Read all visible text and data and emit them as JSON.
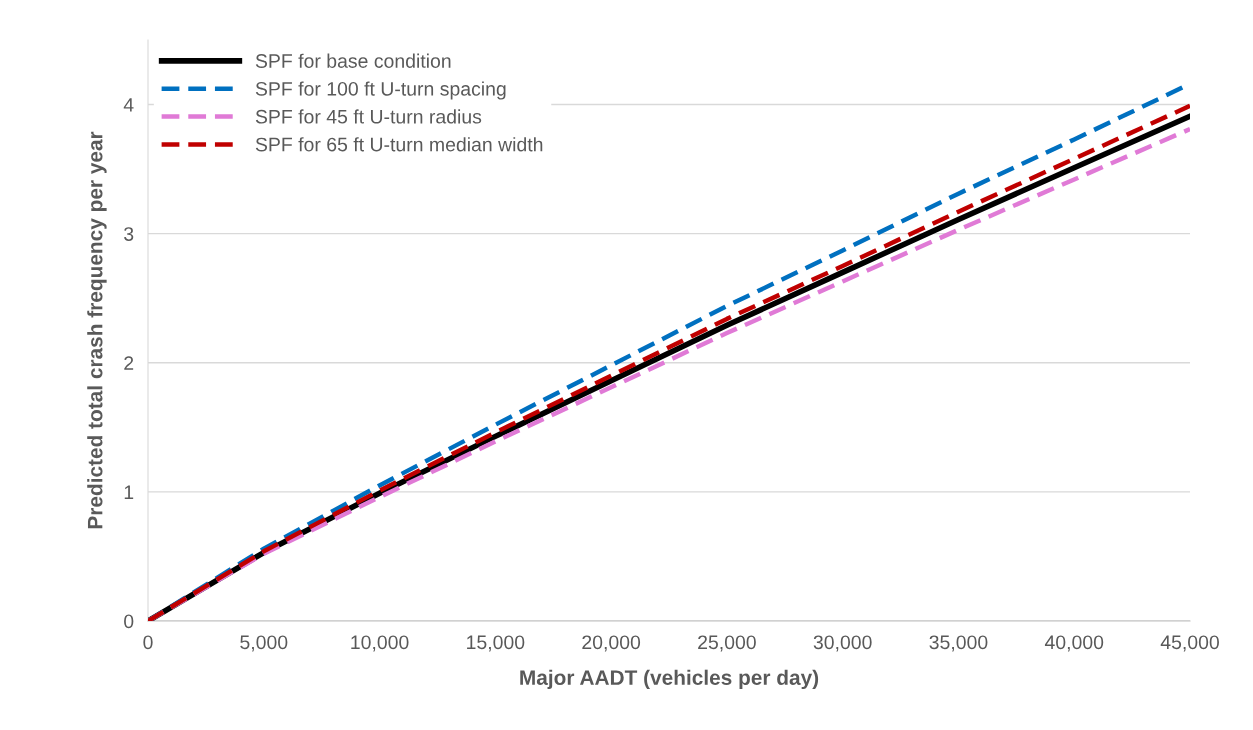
{
  "chart_data": {
    "type": "line",
    "xlabel": "Major AADT (vehicles per day)",
    "ylabel": "Predicted total crash frequency per year",
    "x": [
      0,
      5000,
      10000,
      15000,
      20000,
      25000,
      30000,
      35000,
      40000,
      45000
    ],
    "series": [
      {
        "name": "SPF for base condition",
        "color": "#000000",
        "line_style": "solid",
        "values": [
          0,
          0.53,
          0.99,
          1.43,
          1.86,
          2.29,
          2.7,
          3.11,
          3.51,
          3.91
        ]
      },
      {
        "name": "SPF for 100 ft U-turn spacing",
        "color": "#0070c0",
        "line_style": "dashed",
        "values": [
          0,
          0.56,
          1.05,
          1.52,
          1.98,
          2.44,
          2.87,
          3.31,
          3.73,
          4.16
        ]
      },
      {
        "name": "SPF for 45 ft U-turn radius",
        "color": "#e07ad6",
        "line_style": "dashed",
        "values": [
          0,
          0.52,
          0.96,
          1.39,
          1.81,
          2.23,
          2.63,
          3.03,
          3.42,
          3.81
        ]
      },
      {
        "name": "SPF for 65 ft U-turn median width",
        "color": "#c00000",
        "line_style": "dashed",
        "values": [
          0,
          0.54,
          1.01,
          1.46,
          1.9,
          2.34,
          2.75,
          3.17,
          3.58,
          3.99
        ]
      }
    ],
    "xlim": [
      0,
      45000
    ],
    "ylim": [
      0,
      4.5
    ],
    "xticks": [
      {
        "value": 0,
        "label": "0"
      },
      {
        "value": 5000,
        "label": "5,000"
      },
      {
        "value": 10000,
        "label": "10,000"
      },
      {
        "value": 15000,
        "label": "15,000"
      },
      {
        "value": 20000,
        "label": "20,000"
      },
      {
        "value": 25000,
        "label": "25,000"
      },
      {
        "value": 30000,
        "label": "30,000"
      },
      {
        "value": 35000,
        "label": "35,000"
      },
      {
        "value": 40000,
        "label": "40,000"
      },
      {
        "value": 45000,
        "label": "45,000"
      }
    ],
    "yticks": [
      0,
      1,
      2,
      3,
      4
    ],
    "grid": "y",
    "legend": "top left",
    "marker": "none"
  }
}
